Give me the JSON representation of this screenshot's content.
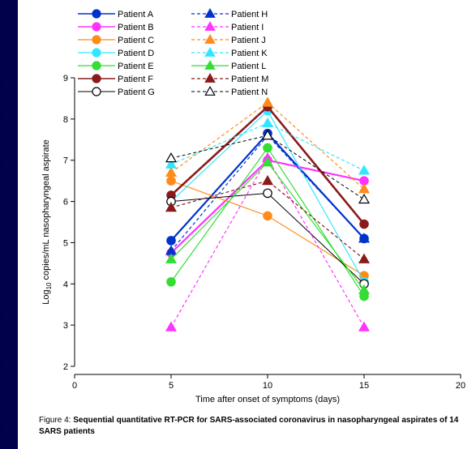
{
  "chart_data": {
    "type": "line",
    "xlabel": "Time after onset of symptoms (days)",
    "ylabel_prefix": "Log",
    "ylabel_sub": "10",
    "ylabel_suffix": " copies/mL nasopharyngeal aspirate",
    "xlim": [
      0,
      20
    ],
    "ylim": [
      2,
      9
    ],
    "xticks": [
      0,
      5,
      10,
      15,
      20
    ],
    "yticks": [
      2,
      3,
      4,
      5,
      6,
      7,
      8,
      9
    ],
    "x": [
      5,
      10,
      15
    ],
    "grid": false,
    "legend_position": "top",
    "series": [
      {
        "name": "Patient A",
        "values": [
          5.05,
          7.65,
          5.1
        ],
        "color": "#0033cc",
        "marker": "circle",
        "filled": true,
        "dashed": false,
        "width": 2.2
      },
      {
        "name": "Patient B",
        "values": [
          4.75,
          7.0,
          6.5
        ],
        "color": "#ff33ff",
        "marker": "circle",
        "filled": true,
        "dashed": false,
        "width": 2.2
      },
      {
        "name": "Patient C",
        "values": [
          6.5,
          5.65,
          4.2
        ],
        "color": "#ff8c1a",
        "marker": "circle",
        "filled": true,
        "dashed": false,
        "width": 1.2
      },
      {
        "name": "Patient D",
        "values": [
          6.0,
          8.2,
          4.05
        ],
        "color": "#33e6ff",
        "marker": "circle",
        "filled": true,
        "dashed": false,
        "width": 1.2
      },
      {
        "name": "Patient E",
        "values": [
          4.05,
          7.3,
          3.7
        ],
        "color": "#33dd33",
        "marker": "circle",
        "filled": true,
        "dashed": false,
        "width": 1.2
      },
      {
        "name": "Patient F",
        "values": [
          6.15,
          8.3,
          5.45
        ],
        "color": "#8b1a1a",
        "marker": "circle",
        "filled": true,
        "dashed": false,
        "width": 2.6
      },
      {
        "name": "Patient G",
        "values": [
          6.0,
          6.2,
          4.0
        ],
        "color": "#000000",
        "marker": "circle",
        "filled": false,
        "dashed": false,
        "width": 1.0
      },
      {
        "name": "Patient H",
        "values": [
          4.8,
          7.6,
          5.1
        ],
        "color": "#0033cc",
        "marker": "triangle",
        "filled": true,
        "dashed": true,
        "width": 1.2
      },
      {
        "name": "Patient I",
        "values": [
          2.95,
          7.05,
          2.95
        ],
        "color": "#ff33ff",
        "marker": "triangle",
        "filled": true,
        "dashed": true,
        "width": 1.2
      },
      {
        "name": "Patient J",
        "values": [
          6.7,
          8.4,
          6.3
        ],
        "color": "#ff8c1a",
        "marker": "triangle",
        "filled": true,
        "dashed": true,
        "width": 1.2
      },
      {
        "name": "Patient K",
        "values": [
          6.9,
          7.9,
          6.75
        ],
        "color": "#33e6ff",
        "marker": "triangle",
        "filled": true,
        "dashed": true,
        "width": 1.2
      },
      {
        "name": "Patient L",
        "values": [
          4.6,
          6.95,
          3.85
        ],
        "color": "#33dd33",
        "marker": "triangle",
        "filled": true,
        "dashed": false,
        "width": 1.2
      },
      {
        "name": "Patient M",
        "values": [
          5.85,
          6.5,
          4.6
        ],
        "color": "#8b1a1a",
        "marker": "triangle",
        "filled": true,
        "dashed": true,
        "width": 1.2
      },
      {
        "name": "Patient N",
        "values": [
          7.05,
          7.6,
          6.05
        ],
        "color": "#000000",
        "marker": "triangle",
        "filled": false,
        "dashed": true,
        "width": 1.0
      }
    ]
  },
  "caption": {
    "prefix": "Figure 4: ",
    "title": "Sequential quantitative RT-PCR for SARS-associated coronavirus in nasopharyngeal aspirates of 14 SARS patients"
  }
}
